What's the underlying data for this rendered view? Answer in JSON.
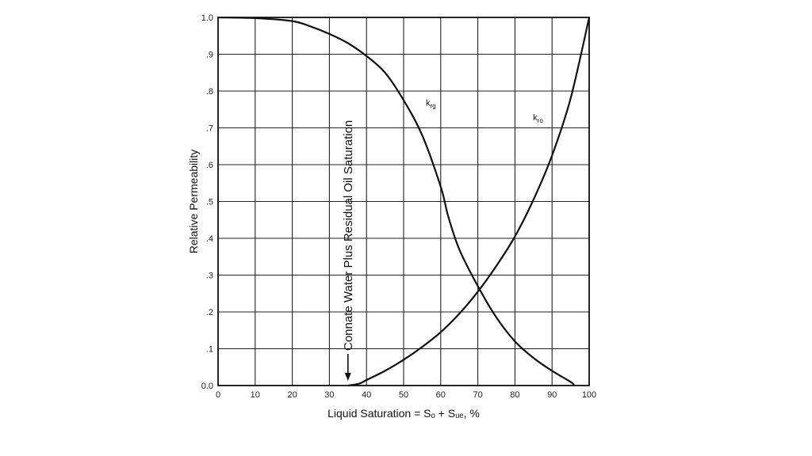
{
  "chart_data": {
    "type": "line",
    "title": "",
    "xlabel": "Liquid Saturation = Sₒ + Sᵤₑ, %",
    "ylabel": "Relative Permeability",
    "xlim": [
      0,
      100
    ],
    "ylim": [
      0,
      1.0
    ],
    "grid": true,
    "x_ticks": [
      "0",
      "10",
      "20",
      "30",
      "40",
      "50",
      "60",
      "70",
      "80",
      "90",
      "100"
    ],
    "y_ticks": [
      "0.0",
      ".1",
      ".2",
      ".3",
      ".4",
      ".5",
      ".6",
      ".7",
      ".8",
      ".9",
      "1.0"
    ],
    "series": [
      {
        "name": "krg",
        "label_main": "k",
        "label_sub": "rg",
        "x": [
          0,
          10,
          20,
          25,
          30,
          35,
          40,
          45,
          50,
          55,
          60,
          62,
          65,
          70,
          75,
          80,
          85,
          90,
          95,
          96
        ],
        "y": [
          1.0,
          0.998,
          0.99,
          0.975,
          0.955,
          0.93,
          0.895,
          0.85,
          0.775,
          0.68,
          0.54,
          0.46,
          0.37,
          0.27,
          0.185,
          0.12,
          0.075,
          0.04,
          0.01,
          0.0
        ]
      },
      {
        "name": "kro",
        "label_main": "k",
        "label_sub": "ro",
        "x": [
          35,
          38,
          40,
          45,
          50,
          55,
          60,
          65,
          70,
          75,
          80,
          85,
          90,
          95,
          100
        ],
        "y": [
          0.0,
          0.005,
          0.015,
          0.04,
          0.07,
          0.105,
          0.145,
          0.195,
          0.255,
          0.325,
          0.405,
          0.505,
          0.625,
          0.78,
          1.0
        ]
      }
    ],
    "annotations": [
      {
        "text": "Connate Water Plus Residual Oil Saturation",
        "x": 35,
        "orientation": "vertical",
        "arrow": "down"
      }
    ]
  }
}
